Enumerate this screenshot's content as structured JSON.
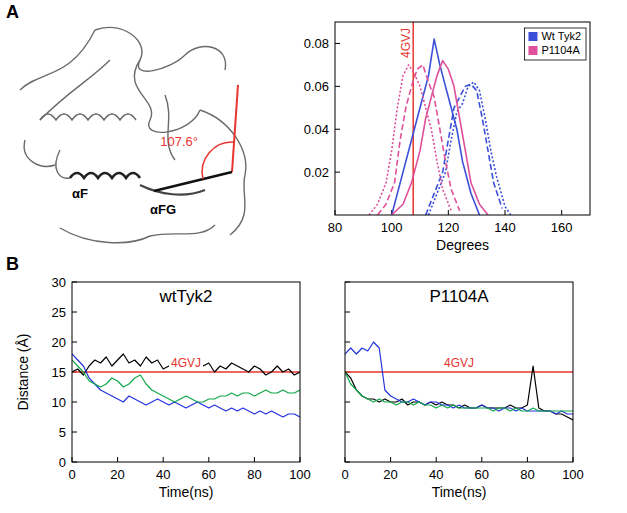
{
  "chart_data": [
    {
      "type": "structure",
      "panel": "A",
      "angle_label": "107.6°",
      "labels": [
        "αF",
        "αFG"
      ]
    },
    {
      "type": "line",
      "x_label": "Degrees",
      "xlim": [
        80,
        170
      ],
      "xticks": [
        80,
        100,
        120,
        140,
        160
      ],
      "ylim": [
        0,
        0.09
      ],
      "yticks": [
        0.02,
        0.04,
        0.06,
        0.08
      ],
      "grid": false,
      "legend": "top-right",
      "reference_lines": [
        {
          "value": 107.6,
          "label": "4GVJ",
          "axis": "x",
          "color": "#e8352f"
        }
      ],
      "series": [
        {
          "name": "Wt Tyk2",
          "color": "#3b4fd8",
          "line_style": "solid",
          "x": [
            100,
            104,
            108,
            111,
            113,
            115,
            117,
            119,
            121,
            123,
            125,
            128,
            131
          ],
          "values": [
            0,
            0.02,
            0.04,
            0.055,
            0.065,
            0.082,
            0.07,
            0.06,
            0.05,
            0.04,
            0.025,
            0.01,
            0
          ]
        },
        {
          "color": "#3b4fd8",
          "line_style": "dashed",
          "x": [
            112,
            115,
            118,
            120,
            122,
            124,
            126,
            128,
            130,
            132,
            134,
            136,
            139
          ],
          "values": [
            0,
            0.01,
            0.02,
            0.035,
            0.05,
            0.055,
            0.06,
            0.061,
            0.058,
            0.045,
            0.03,
            0.015,
            0.003
          ]
        },
        {
          "color": "#3b4fd8",
          "line_style": "dotted",
          "x": [
            113,
            116,
            119,
            121,
            123,
            125,
            127,
            129,
            131,
            133,
            135,
            137,
            140,
            142
          ],
          "values": [
            0,
            0.01,
            0.02,
            0.035,
            0.048,
            0.052,
            0.06,
            0.062,
            0.058,
            0.045,
            0.03,
            0.018,
            0.004,
            0
          ]
        },
        {
          "name": "P1104A",
          "color": "#e0509a",
          "line_style": "solid",
          "x": [
            100,
            104,
            107,
            110,
            112,
            114,
            116,
            118,
            120,
            122,
            124,
            126,
            128,
            131,
            134
          ],
          "values": [
            0,
            0.005,
            0.015,
            0.03,
            0.045,
            0.055,
            0.065,
            0.072,
            0.068,
            0.06,
            0.045,
            0.03,
            0.015,
            0.005,
            0
          ]
        },
        {
          "color": "#e0509a",
          "line_style": "dashed",
          "x": [
            95,
            98,
            101,
            103,
            105,
            107,
            109,
            111,
            113,
            115,
            117,
            119,
            121,
            124
          ],
          "values": [
            0,
            0.005,
            0.015,
            0.035,
            0.05,
            0.06,
            0.068,
            0.07,
            0.062,
            0.055,
            0.04,
            0.025,
            0.012,
            0.002
          ]
        },
        {
          "color": "#e0509a",
          "line_style": "dotted",
          "x": [
            92,
            95,
            98,
            100,
            102,
            104,
            106,
            108,
            110,
            112,
            114,
            116,
            118,
            121
          ],
          "values": [
            0,
            0.005,
            0.015,
            0.03,
            0.05,
            0.065,
            0.07,
            0.066,
            0.06,
            0.05,
            0.04,
            0.025,
            0.012,
            0.002
          ]
        }
      ]
    },
    {
      "type": "line",
      "panel": "B",
      "title": "wtTyk2",
      "x_label": "Time(ns)",
      "y_label": "Distance (Å)",
      "xlim": [
        0,
        100
      ],
      "xticks": [
        0,
        20,
        40,
        60,
        80,
        100
      ],
      "ylim": [
        0,
        30
      ],
      "yticks": [
        0,
        5,
        10,
        15,
        20,
        25,
        30
      ],
      "grid": false,
      "reference_lines": [
        {
          "value": 15,
          "label": "4GVJ",
          "axis": "y",
          "color": "#e8352f"
        }
      ],
      "x": [
        0,
        2.5,
        5,
        7.5,
        10,
        12.5,
        15,
        17.5,
        20,
        22.5,
        25,
        27.5,
        30,
        32.5,
        35,
        37.5,
        40,
        42.5,
        45,
        47.5,
        50,
        52.5,
        55,
        57.5,
        60,
        62.5,
        65,
        67.5,
        70,
        72.5,
        75,
        77.5,
        80,
        82.5,
        85,
        87.5,
        90,
        92.5,
        95,
        97.5,
        100
      ],
      "series": [
        {
          "color": "#000000",
          "values": [
            15,
            15.5,
            14.5,
            16,
            17,
            16.5,
            17.5,
            16,
            17,
            18,
            16.5,
            17,
            16,
            17.5,
            16.5,
            17,
            15.5,
            16,
            17,
            16,
            16.5,
            15.5,
            17,
            16,
            16.5,
            15,
            16,
            15.5,
            16.5,
            16,
            15.5,
            15,
            16,
            15.5,
            14.5,
            15,
            16,
            15,
            15.5,
            14.5,
            15
          ]
        },
        {
          "color": "#2233dd",
          "values": [
            18,
            17,
            16,
            14,
            13,
            12,
            11.5,
            11,
            10.5,
            10,
            11,
            10.5,
            10,
            9.5,
            10,
            10.5,
            10,
            9.5,
            10,
            9.5,
            9,
            9.5,
            10,
            9.5,
            9,
            9.5,
            9,
            8.5,
            9,
            8.5,
            9,
            8.5,
            8,
            8.5,
            8,
            8.5,
            8,
            7.5,
            8,
            8,
            7.5
          ]
        },
        {
          "color": "#11a84a",
          "values": [
            17,
            16,
            15,
            13.5,
            13,
            12.5,
            13,
            14,
            13.5,
            12.5,
            13,
            14,
            14.5,
            13,
            12,
            11.5,
            11,
            10.5,
            10,
            10.5,
            11,
            10.5,
            10,
            10,
            10.5,
            10.5,
            11,
            11,
            11.5,
            11,
            11.5,
            11.5,
            11,
            11.5,
            12,
            11.5,
            11.5,
            12,
            11.5,
            11.5,
            12
          ]
        }
      ]
    },
    {
      "type": "line",
      "title": "P1104A",
      "x_label": "Time(ns)",
      "xlim": [
        0,
        100
      ],
      "xticks": [
        0,
        20,
        40,
        60,
        80,
        100
      ],
      "ylim": [
        0,
        30
      ],
      "yticks": [
        0,
        5,
        10,
        15,
        20,
        25,
        30
      ],
      "grid": false,
      "tick_labels": "x",
      "reference_lines": [
        {
          "value": 15,
          "label": "4GVJ",
          "axis": "y",
          "color": "#e8352f"
        }
      ],
      "x": [
        0,
        2.5,
        5,
        7.5,
        10,
        12.5,
        15,
        17.5,
        20,
        22.5,
        25,
        27.5,
        30,
        32.5,
        35,
        37.5,
        40,
        42.5,
        45,
        47.5,
        50,
        52.5,
        55,
        57.5,
        60,
        62.5,
        65,
        67.5,
        70,
        72.5,
        75,
        77.5,
        80,
        82.5,
        85,
        87.5,
        90,
        92.5,
        95,
        97.5,
        100
      ],
      "series": [
        {
          "color": "#000000",
          "values": [
            15,
            14,
            12,
            11,
            10.5,
            10.5,
            10,
            10.5,
            10,
            10,
            10.5,
            9.5,
            10,
            10,
            9.5,
            10,
            9.5,
            10,
            9.5,
            9.5,
            9,
            9.5,
            9,
            9,
            9.5,
            9,
            9,
            9,
            9,
            9.5,
            9,
            9,
            9.5,
            16,
            9,
            8.5,
            8.5,
            8,
            8,
            7.5,
            7
          ]
        },
        {
          "color": "#2233dd",
          "values": [
            18,
            19,
            18,
            19,
            18.5,
            20,
            19,
            12,
            11,
            10.5,
            10,
            10,
            10.5,
            10,
            9.5,
            10,
            10,
            9.5,
            9.5,
            9,
            9.5,
            9,
            9,
            9,
            9.5,
            9,
            9,
            8.5,
            9,
            9,
            8.5,
            9,
            8.5,
            8.5,
            8.5,
            8.5,
            8.5,
            8,
            8.5,
            8,
            8
          ]
        },
        {
          "color": "#11a84a",
          "values": [
            15,
            13,
            12,
            11,
            10.5,
            10,
            10.5,
            10,
            10,
            9.5,
            10,
            10,
            9.5,
            10,
            9.5,
            9.5,
            9,
            9.5,
            9,
            9.5,
            9,
            9,
            9,
            9,
            9,
            9,
            8.5,
            9,
            9,
            8.5,
            9,
            8.5,
            8.5,
            9,
            8.5,
            8.5,
            8.5,
            8.5,
            8.5,
            8.5,
            8.5
          ]
        }
      ]
    }
  ]
}
